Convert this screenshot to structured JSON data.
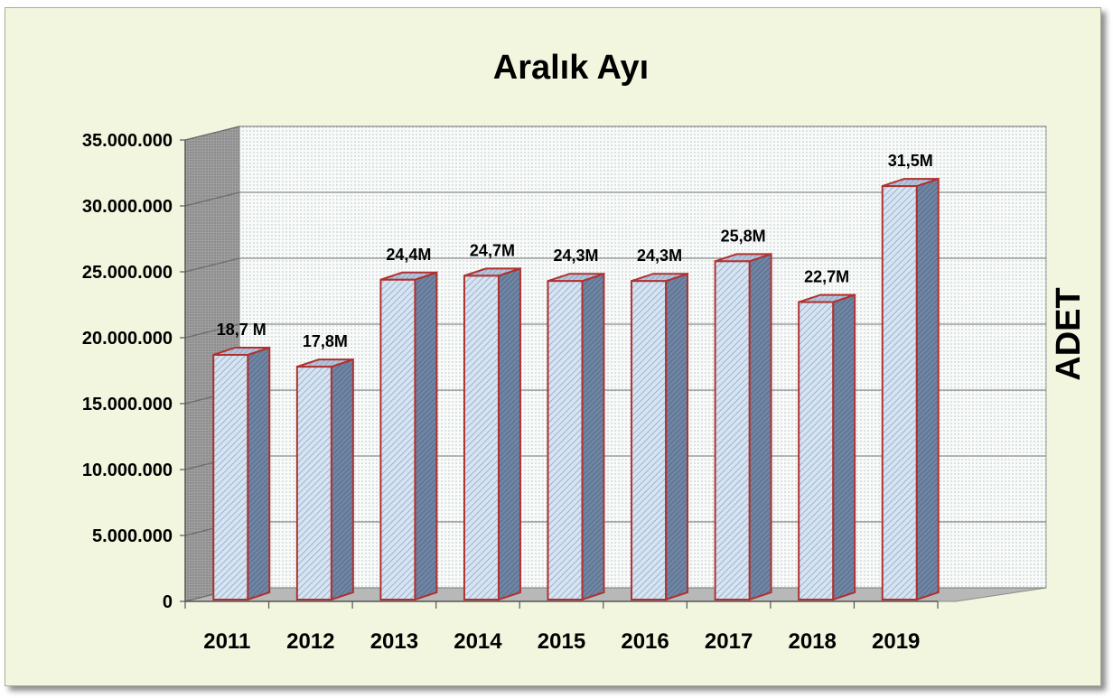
{
  "chart_data": {
    "type": "bar",
    "style": "3d-column",
    "title": "Aralık Ayı",
    "ylabel": "ADET",
    "xlabel": "",
    "categories": [
      "2011",
      "2012",
      "2013",
      "2014",
      "2015",
      "2016",
      "2017",
      "2018",
      "2019"
    ],
    "values": [
      18700000,
      17800000,
      24400000,
      24700000,
      24300000,
      24300000,
      25800000,
      22700000,
      31500000
    ],
    "data_labels": [
      "18,7 M",
      "17,8M",
      "24,4M",
      "24,7M",
      "24,3M",
      "24,3M",
      "25,8M",
      "22,7M",
      "31,5M"
    ],
    "ylim": [
      0,
      35000000
    ],
    "yticks": [
      0,
      5000000,
      10000000,
      15000000,
      20000000,
      25000000,
      30000000,
      35000000
    ],
    "ytick_labels": [
      "0",
      "5.000.000",
      "10.000.000",
      "15.000.000",
      "20.000.000",
      "25.000.000",
      "30.000.000",
      "35.000.000"
    ],
    "grid": true,
    "legend": "none",
    "colors": {
      "bar_front": "#cfdff0",
      "bar_side": "#6f85a3",
      "bar_top": "#a8bcd6",
      "bar_outline": "#b0312e",
      "plot_back": "#f7f9f7",
      "plot_side": "#9a9a9a",
      "grid": "#8a8a8a",
      "chart_bg": "#f2f6df"
    }
  }
}
